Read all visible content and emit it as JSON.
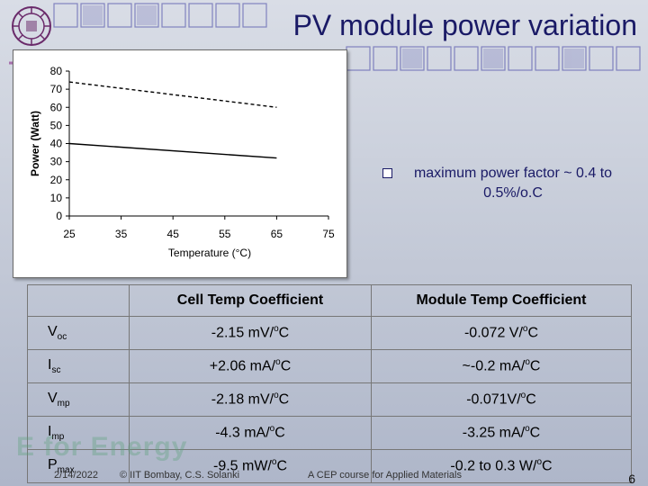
{
  "slide": {
    "title": "PV module power variation",
    "bullet": "maximum power factor ~ 0.4 to 0.5%/o.C",
    "watermark": "E for Energy",
    "date": "2/14/2022",
    "credit": "© IIT Bombay, C.S. Solanki",
    "course": "A CEP course for Applied Materials",
    "page": "6"
  },
  "table": {
    "headers": [
      "",
      "Cell Temp Coefficient",
      "Module Temp Coefficient"
    ],
    "rows": [
      {
        "param": "V",
        "sub": "oc",
        "cell": "-2.15 mV/",
        "cell_unit": "C",
        "module": "-0.072 V/",
        "module_unit": "C"
      },
      {
        "param": "I",
        "sub": "sc",
        "cell": "+2.06 mA/",
        "cell_unit": "C",
        "module": "~-0.2 mA/",
        "module_unit": "C"
      },
      {
        "param": "V",
        "sub": "mp",
        "cell": "-2.18 mV/",
        "cell_unit": "C",
        "module": "-0.071V/",
        "module_unit": "C"
      },
      {
        "param": "I",
        "sub": "mp",
        "cell": "-4.3 mA/",
        "cell_unit": "C",
        "module": "-3.25 mA/",
        "module_unit": "C"
      },
      {
        "param": "P",
        "sub": "max",
        "cell": "-9.5 mW/",
        "cell_unit": "C",
        "module": "-0.2 to 0.3 W/",
        "module_unit": "C"
      }
    ],
    "deg_sup": "o"
  },
  "chart_data": {
    "type": "line",
    "xlabel": "Temperature (°C)",
    "ylabel": "Power (Watt)",
    "xlim": [
      25,
      75
    ],
    "ylim": [
      0,
      80
    ],
    "x_ticks": [
      "25",
      "35",
      "45",
      "55",
      "65",
      "75"
    ],
    "y_ticks": [
      "0",
      "10",
      "20",
      "30",
      "40",
      "50",
      "60",
      "70",
      "80"
    ],
    "grid": false,
    "series": [
      {
        "style": "dashed",
        "color": "#000000",
        "x": [
          25,
          65
        ],
        "y": [
          74,
          60
        ]
      },
      {
        "style": "solid",
        "color": "#000000",
        "x": [
          25,
          65
        ],
        "y": [
          40,
          32
        ]
      }
    ]
  }
}
